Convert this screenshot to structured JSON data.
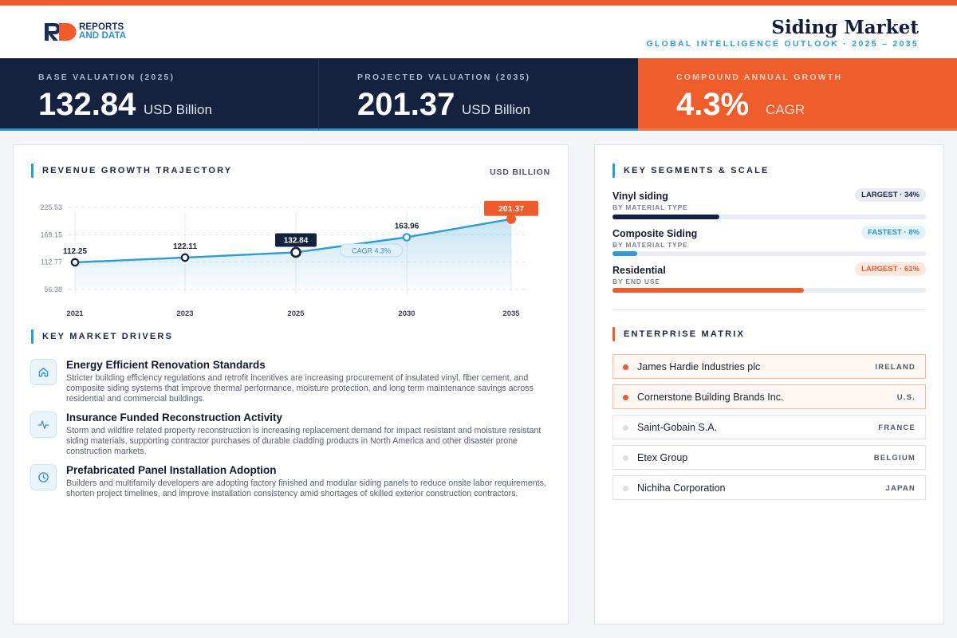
{
  "brand": {
    "line1": "REPORTS",
    "line2": "AND DATA"
  },
  "header": {
    "title": "Siding Market",
    "subtitle": "GLOBAL INTELLIGENCE OUTLOOK  ·  2025 – 2035"
  },
  "kpis": [
    {
      "label": "BASE VALUATION (2025)",
      "value": "132.84",
      "unit": "USD Billion"
    },
    {
      "label": "PROJECTED VALUATION (2035)",
      "value": "201.37",
      "unit": "USD Billion"
    },
    {
      "label": "COMPOUND ANNUAL GROWTH",
      "value": "4.3%",
      "unit": "CAGR"
    }
  ],
  "chart_section": {
    "title": "REVENUE GROWTH TRAJECTORY",
    "unit_tag": "USD BILLION",
    "cagr_label": "CAGR 4.3%"
  },
  "chart_data": {
    "type": "area",
    "x": [
      "2021",
      "2023",
      "2025",
      "2030",
      "2035"
    ],
    "values": [
      112.25,
      122.11,
      132.84,
      163.96,
      201.37
    ],
    "data_labels": [
      "112.25",
      "122.11",
      "132.84",
      "163.96",
      "201.37"
    ],
    "yticks": [
      "225.53",
      "169.15",
      "112.77",
      "56.38"
    ],
    "ytick_values": [
      225.53,
      169.15,
      112.77,
      56.38
    ],
    "ylim": [
      56.38,
      225.53
    ],
    "grid": true,
    "colors": {
      "line": "#2e9bd6",
      "highlight": "#15223f",
      "end": "#ef5b2b"
    }
  },
  "drivers_section": {
    "title": "KEY MARKET DRIVERS"
  },
  "drivers": [
    {
      "icon": "home-icon",
      "title": "Energy Efficient Renovation Standards",
      "text": "Stricter building efficiency regulations and retrofit incentives are increasing procurement of insulated vinyl, fiber cement, and composite siding systems that improve thermal performance, moisture protection, and long term maintenance savings across residential and commercial buildings."
    },
    {
      "icon": "pulse-icon",
      "title": "Insurance Funded Reconstruction Activity",
      "text": "Storm and wildfire related property reconstruction is increasing replacement demand for impact resistant and moisture resistant siding materials, supporting contractor purchases of durable cladding products in North America and other disaster prone construction markets."
    },
    {
      "icon": "clock-icon",
      "title": "Prefabricated Panel Installation Adoption",
      "text": "Builders and multifamily developers are adopting factory finished and modular siding panels to reduce onsite labor requirements, shorten project timelines, and improve installation consistency amid shortages of skilled exterior construction contractors."
    }
  ],
  "segments_section": {
    "title": "KEY SEGMENTS & SCALE"
  },
  "segments": [
    {
      "name": "Vinyl siding",
      "sub": "BY MATERIAL TYPE",
      "badge": "LARGEST · 34%",
      "share": 0.34,
      "color": "#15223f"
    },
    {
      "name": "Composite Siding",
      "sub": "BY MATERIAL TYPE",
      "badge": "FASTEST · 8%",
      "share": 0.08,
      "color": "#2e9bd6"
    },
    {
      "name": "Residential",
      "sub": "BY END USE",
      "badge": "LARGEST · 61%",
      "share": 0.61,
      "color": "#ef5b2b"
    }
  ],
  "enterprise_section": {
    "title": "ENTERPRISE MATRIX"
  },
  "enterprises": [
    {
      "name": "James Hardie Industries plc",
      "country": "IRELAND",
      "highlight": true
    },
    {
      "name": "Cornerstone Building Brands Inc.",
      "country": "U.S.",
      "highlight": true
    },
    {
      "name": "Saint-Gobain S.A.",
      "country": "FRANCE",
      "highlight": false
    },
    {
      "name": "Etex Group",
      "country": "BELGIUM",
      "highlight": false
    },
    {
      "name": "Nichiha Corporation",
      "country": "JAPAN",
      "highlight": false
    }
  ]
}
